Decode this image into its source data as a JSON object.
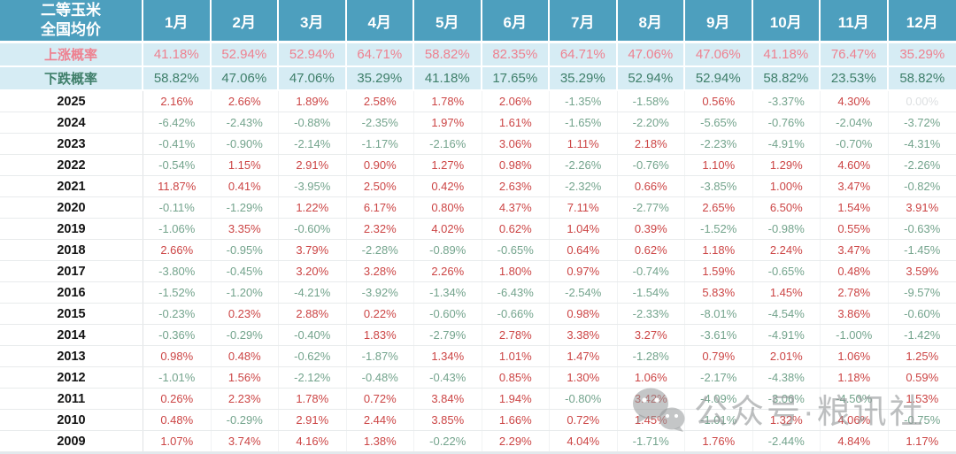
{
  "header": {
    "corner_line1": "二等玉米",
    "corner_line2": "全国均价"
  },
  "watermark": {
    "text": "公众号·粮讯社",
    "icon": "wechat-icon"
  },
  "colors": {
    "header_bg": "#4d9fbe",
    "band_bg": "#d6ecf4",
    "rise_red": "#ee8190",
    "fall_green": "#3f7f6a",
    "positive_red": "#cc4545",
    "negative_green": "#74a48d",
    "zero_gray": "#dcdfe1"
  },
  "chart_data": {
    "type": "table",
    "title": "二等玉米 全国均价",
    "columns": [
      "1月",
      "2月",
      "3月",
      "4月",
      "5月",
      "6月",
      "7月",
      "8月",
      "9月",
      "10月",
      "11月",
      "12月"
    ],
    "rise_probability": {
      "label": "上涨概率",
      "values": [
        "41.18%",
        "52.94%",
        "52.94%",
        "64.71%",
        "58.82%",
        "82.35%",
        "64.71%",
        "47.06%",
        "47.06%",
        "41.18%",
        "76.47%",
        "35.29%"
      ]
    },
    "fall_probability": {
      "label": "下跌概率",
      "values": [
        "58.82%",
        "47.06%",
        "47.06%",
        "35.29%",
        "41.18%",
        "17.65%",
        "35.29%",
        "52.94%",
        "52.94%",
        "58.82%",
        "23.53%",
        "58.82%"
      ]
    },
    "rows": [
      {
        "year": "2025",
        "values": [
          "2.16%",
          "2.66%",
          "1.89%",
          "2.58%",
          "1.78%",
          "2.06%",
          "-1.35%",
          "-1.58%",
          "0.56%",
          "-3.37%",
          "4.30%",
          "0.00%"
        ]
      },
      {
        "year": "2024",
        "values": [
          "-6.42%",
          "-2.43%",
          "-0.88%",
          "-2.35%",
          "1.97%",
          "1.61%",
          "-1.65%",
          "-2.20%",
          "-5.65%",
          "-0.76%",
          "-2.04%",
          "-3.72%"
        ]
      },
      {
        "year": "2023",
        "values": [
          "-0.41%",
          "-0.90%",
          "-2.14%",
          "-1.17%",
          "-2.16%",
          "3.06%",
          "1.11%",
          "2.18%",
          "-2.23%",
          "-4.91%",
          "-0.70%",
          "-4.31%"
        ]
      },
      {
        "year": "2022",
        "values": [
          "-0.54%",
          "1.15%",
          "2.91%",
          "0.90%",
          "1.27%",
          "0.98%",
          "-2.26%",
          "-0.76%",
          "1.10%",
          "1.29%",
          "4.60%",
          "-2.26%"
        ]
      },
      {
        "year": "2021",
        "values": [
          "11.87%",
          "0.41%",
          "-3.95%",
          "2.50%",
          "0.42%",
          "2.63%",
          "-2.32%",
          "0.66%",
          "-3.85%",
          "1.00%",
          "3.47%",
          "-0.82%"
        ]
      },
      {
        "year": "2020",
        "values": [
          "-0.11%",
          "-1.29%",
          "1.22%",
          "6.17%",
          "0.80%",
          "4.37%",
          "7.11%",
          "-2.77%",
          "2.65%",
          "6.50%",
          "1.54%",
          "3.91%"
        ]
      },
      {
        "year": "2019",
        "values": [
          "-1.06%",
          "3.35%",
          "-0.60%",
          "2.32%",
          "4.02%",
          "0.62%",
          "1.04%",
          "0.39%",
          "-1.52%",
          "-0.98%",
          "0.55%",
          "-0.63%"
        ]
      },
      {
        "year": "2018",
        "values": [
          "2.66%",
          "-0.95%",
          "3.79%",
          "-2.28%",
          "-0.89%",
          "-0.65%",
          "0.64%",
          "0.62%",
          "1.18%",
          "2.24%",
          "3.47%",
          "-1.45%"
        ]
      },
      {
        "year": "2017",
        "values": [
          "-3.80%",
          "-0.45%",
          "3.20%",
          "3.28%",
          "2.26%",
          "1.80%",
          "0.97%",
          "-0.74%",
          "1.59%",
          "-0.65%",
          "0.48%",
          "3.59%"
        ]
      },
      {
        "year": "2016",
        "values": [
          "-1.52%",
          "-1.20%",
          "-4.21%",
          "-3.92%",
          "-1.34%",
          "-6.43%",
          "-2.54%",
          "-1.54%",
          "5.83%",
          "1.45%",
          "2.78%",
          "-9.57%"
        ]
      },
      {
        "year": "2015",
        "values": [
          "-0.23%",
          "0.23%",
          "2.88%",
          "0.22%",
          "-0.60%",
          "-0.66%",
          "0.98%",
          "-2.33%",
          "-8.01%",
          "-4.54%",
          "3.86%",
          "-0.60%"
        ]
      },
      {
        "year": "2014",
        "values": [
          "-0.36%",
          "-0.29%",
          "-0.40%",
          "1.83%",
          "-2.79%",
          "2.78%",
          "3.38%",
          "3.27%",
          "-3.61%",
          "-4.91%",
          "-1.00%",
          "-1.42%"
        ]
      },
      {
        "year": "2013",
        "values": [
          "0.98%",
          "0.48%",
          "-0.62%",
          "-1.87%",
          "1.34%",
          "1.01%",
          "1.47%",
          "-1.28%",
          "0.79%",
          "2.01%",
          "1.06%",
          "1.25%"
        ]
      },
      {
        "year": "2012",
        "values": [
          "-1.01%",
          "1.56%",
          "-2.12%",
          "-0.48%",
          "-0.43%",
          "0.85%",
          "1.30%",
          "1.06%",
          "-2.17%",
          "-4.38%",
          "1.18%",
          "0.59%"
        ]
      },
      {
        "year": "2011",
        "values": [
          "0.26%",
          "2.23%",
          "1.78%",
          "0.72%",
          "3.84%",
          "1.94%",
          "-0.80%",
          "3.42%",
          "-4.09%",
          "-3.06%",
          "-4.50%",
          "1.53%"
        ]
      },
      {
        "year": "2010",
        "values": [
          "0.48%",
          "-0.29%",
          "2.91%",
          "2.44%",
          "3.85%",
          "1.66%",
          "0.72%",
          "1.45%",
          "-1.01%",
          "1.32%",
          "4.06%",
          "-0.75%"
        ]
      },
      {
        "year": "2009",
        "values": [
          "1.07%",
          "3.74%",
          "4.16%",
          "1.38%",
          "-0.22%",
          "2.29%",
          "4.04%",
          "-1.71%",
          "1.76%",
          "-2.44%",
          "4.84%",
          "1.17%"
        ]
      }
    ]
  }
}
